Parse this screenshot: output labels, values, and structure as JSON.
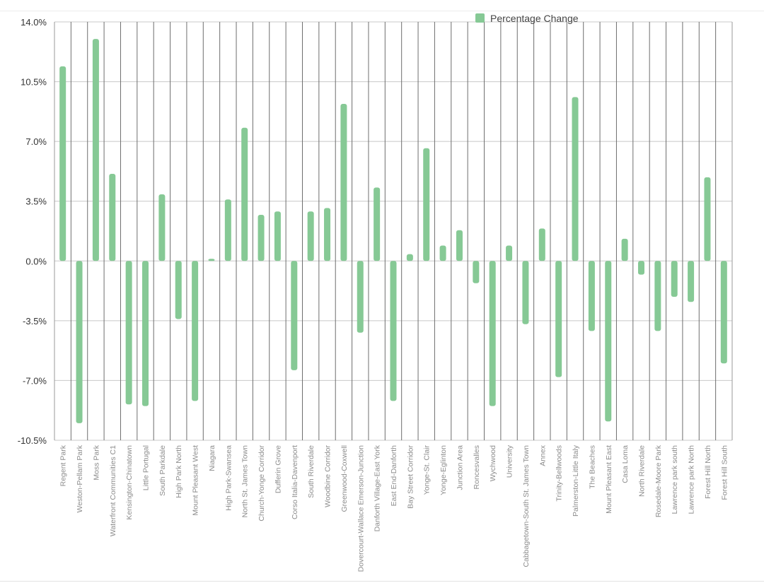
{
  "chart_data": {
    "type": "bar",
    "title": "",
    "xlabel": "",
    "ylabel": "",
    "ylim": [
      -10.5,
      14.0
    ],
    "yticks": [
      "14.0%",
      "10.5%",
      "7.0%",
      "3.5%",
      "0.0%",
      "-3.5%",
      "-7.0%",
      "-10.5%"
    ],
    "ytick_values": [
      14.0,
      10.5,
      7.0,
      3.5,
      0.0,
      -3.5,
      -7.0,
      -10.5
    ],
    "grid": true,
    "legend_position": "top-right",
    "bar_color": "#86c995",
    "categories": [
      "Regent Park",
      "Weston-Pellam Park",
      "Moss Park",
      "Waterfront Communities C1",
      "Kensington-Chinatown",
      "Little Portugal",
      "South Parkdale",
      "High Park North",
      "Mount Pleasant West",
      "Niagara",
      "High Park-Swansea",
      "North St. James Town",
      "Church-Yonge Corridor",
      "Dufferin Grove",
      "Corso Italia-Davenport",
      "South Riverdale",
      "Woodbine Corridor",
      "Greenwood-Coxwell",
      "Dovercourt-Wallace Emerson-Junction",
      "Danforth Village-East York",
      "East End-Danforth",
      "Bay Street Corridor",
      "Yonge-St. Clair",
      "Yonge-Eglinton",
      "Junction Area",
      "Roncesvalles",
      "Wychwood",
      "University",
      "Cabbagetown-South St. James Town",
      "Annex",
      "Trinity-Bellwoods",
      "Palmerston-Little Italy",
      "The Beaches",
      "Mount Pleasant East",
      "Casa Loma",
      "North Riverdale",
      "Rosedale-Moore Park",
      "Lawrence park south",
      "Lawrence park North",
      "Forest Hill North",
      "Forest Hill South"
    ],
    "series": [
      {
        "name": "Percentage Change",
        "values": [
          11.4,
          -9.5,
          13.0,
          5.1,
          -8.4,
          -8.5,
          3.9,
          -3.4,
          -8.2,
          0.1,
          3.6,
          7.8,
          2.7,
          2.9,
          -6.4,
          2.9,
          3.1,
          9.2,
          -4.2,
          4.3,
          -8.2,
          0.4,
          6.6,
          0.9,
          1.8,
          -1.3,
          -8.5,
          0.9,
          -3.7,
          1.9,
          -6.8,
          9.6,
          -4.1,
          -9.4,
          1.3,
          -0.8,
          -4.1,
          -2.1,
          -2.4,
          4.9,
          -6.0
        ]
      }
    ]
  }
}
